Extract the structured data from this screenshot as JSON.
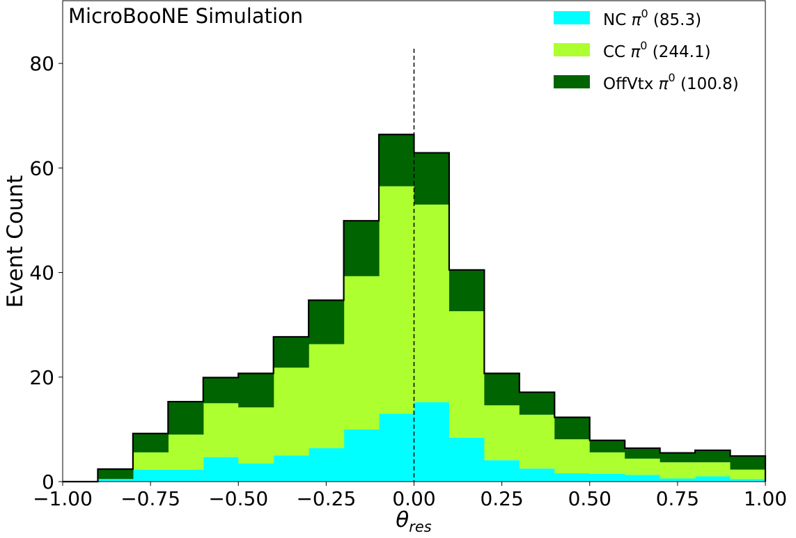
{
  "chart_data": {
    "type": "bar",
    "stacked": true,
    "annotation": "MicroBooNE Simulation",
    "xlabel": "θ",
    "xlabel_subscript": "res",
    "ylabel": "Event Count",
    "xlim": [
      -1.0,
      1.0
    ],
    "ylim": [
      0,
      92
    ],
    "xticks": [
      "−1.00",
      "−0.75",
      "−0.50",
      "−0.25",
      "0.00",
      "0.25",
      "0.50",
      "0.75",
      "1.00"
    ],
    "xtick_values": [
      -1.0,
      -0.75,
      -0.5,
      -0.25,
      0.0,
      0.25,
      0.5,
      0.75,
      1.0
    ],
    "yticks": [
      "0",
      "20",
      "40",
      "60",
      "80"
    ],
    "ytick_values": [
      0,
      20,
      40,
      60,
      80
    ],
    "reference_line_x": 0.0,
    "bin_edges": [
      -1.0,
      -0.9,
      -0.8,
      -0.7,
      -0.6,
      -0.5,
      -0.4,
      -0.3,
      -0.2,
      -0.1,
      0.0,
      0.1,
      0.2,
      0.3,
      0.4,
      0.5,
      0.6,
      0.7,
      0.8,
      0.9,
      1.0
    ],
    "legend_position": "top-right",
    "series": [
      {
        "name_base": "NC",
        "name_suffix": "(85.3)",
        "color": "#00ffff",
        "values": [
          0,
          0.5,
          2.3,
          2.3,
          4.7,
          3.5,
          5.0,
          6.4,
          10.0,
          13.0,
          15.2,
          8.4,
          4.1,
          2.5,
          1.6,
          1.5,
          1.3,
          0.6,
          1.0,
          0.5
        ]
      },
      {
        "name_base": "CC",
        "name_suffix": "(244.1)",
        "color": "#adff2f",
        "values": [
          0,
          0,
          3.3,
          6.7,
          10.3,
          10.7,
          16.8,
          19.9,
          29.3,
          43.5,
          37.8,
          24.2,
          10.5,
          10.3,
          6.5,
          4.1,
          3.1,
          3.1,
          2.7,
          1.8
        ]
      },
      {
        "name_base": "OffVtx",
        "name_suffix": "(100.8)",
        "color": "#006400",
        "values": [
          0,
          1.9,
          3.6,
          6.3,
          4.9,
          6.5,
          5.9,
          8.4,
          10.6,
          9.9,
          9.9,
          7.9,
          6.1,
          4.3,
          4.2,
          2.3,
          2.0,
          1.8,
          2.3,
          2.6
        ]
      }
    ],
    "pi_symbol": "π",
    "pi_superscript": "0"
  }
}
